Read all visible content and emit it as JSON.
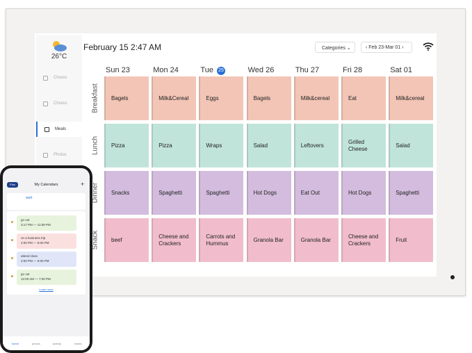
{
  "header": {
    "temperature": "26°C",
    "datetime": "February 15 2:47 AM",
    "categories_button": "Categories",
    "range": "Feb 23-Mar 01"
  },
  "sidebar": [
    "Chores",
    "Chores",
    "Meals",
    "Photos"
  ],
  "days": [
    {
      "day": "Sun",
      "date": "23"
    },
    {
      "day": "Mon",
      "date": "24"
    },
    {
      "day": "Tue",
      "date": "25",
      "highlighted": true
    },
    {
      "day": "Wed",
      "date": "26"
    },
    {
      "day": "Thu",
      "date": "27"
    },
    {
      "day": "Fri",
      "date": "28"
    },
    {
      "day": "Sat",
      "date": "01"
    }
  ],
  "meals": [
    {
      "name": "Breakfast",
      "color": "#f3c5b6",
      "items": [
        "Bagels",
        "Milk&Cereal",
        "Eggs",
        "Bagels",
        "Milk&cereal",
        "Eat",
        "Milk&cereal"
      ]
    },
    {
      "name": "Lunch",
      "color": "#c1e4da",
      "items": [
        "Pizza",
        "Pizza",
        "Wraps",
        "Salad",
        "Leftovers",
        "Grilled Cheese",
        "Salad"
      ]
    },
    {
      "name": "Dinner",
      "color": "#d3bcdd",
      "items": [
        "Snacks",
        "Spaghetti",
        "Spaghetti",
        "Hot Dogs",
        "Eat Out",
        "Hot Dogs",
        "Spaghetti"
      ]
    },
    {
      "name": "Snack",
      "color": "#f1bdcc",
      "items": [
        "beef",
        "Cheese and Crackers",
        "Carrots and Hummus",
        "Granola Bar",
        "Granola Bar",
        "Cheese and Crackers",
        "Fruit"
      ]
    }
  ],
  "phone": {
    "plan": "Plus",
    "title": "My Calendars",
    "add": "+",
    "calendar": "wort",
    "events": [
      {
        "title": "go out",
        "time": "3:17 PM — 11:59 PM",
        "color": "#e7f3dc"
      },
      {
        "title": "on a business trip",
        "time": "4:00 PM — 5:00 PM",
        "color": "#fbe0e0"
      },
      {
        "title": "attend class",
        "time": "4:00 PM — 5:00 PM",
        "color": "#e0e6f8"
      },
      {
        "title": "go out",
        "time": "12:00 AM — 7:00 PM",
        "color": "#e7f3dc"
      }
    ],
    "more": "Learn more",
    "tabs": [
      "home",
      "photos",
      "activity",
      "meals"
    ]
  }
}
